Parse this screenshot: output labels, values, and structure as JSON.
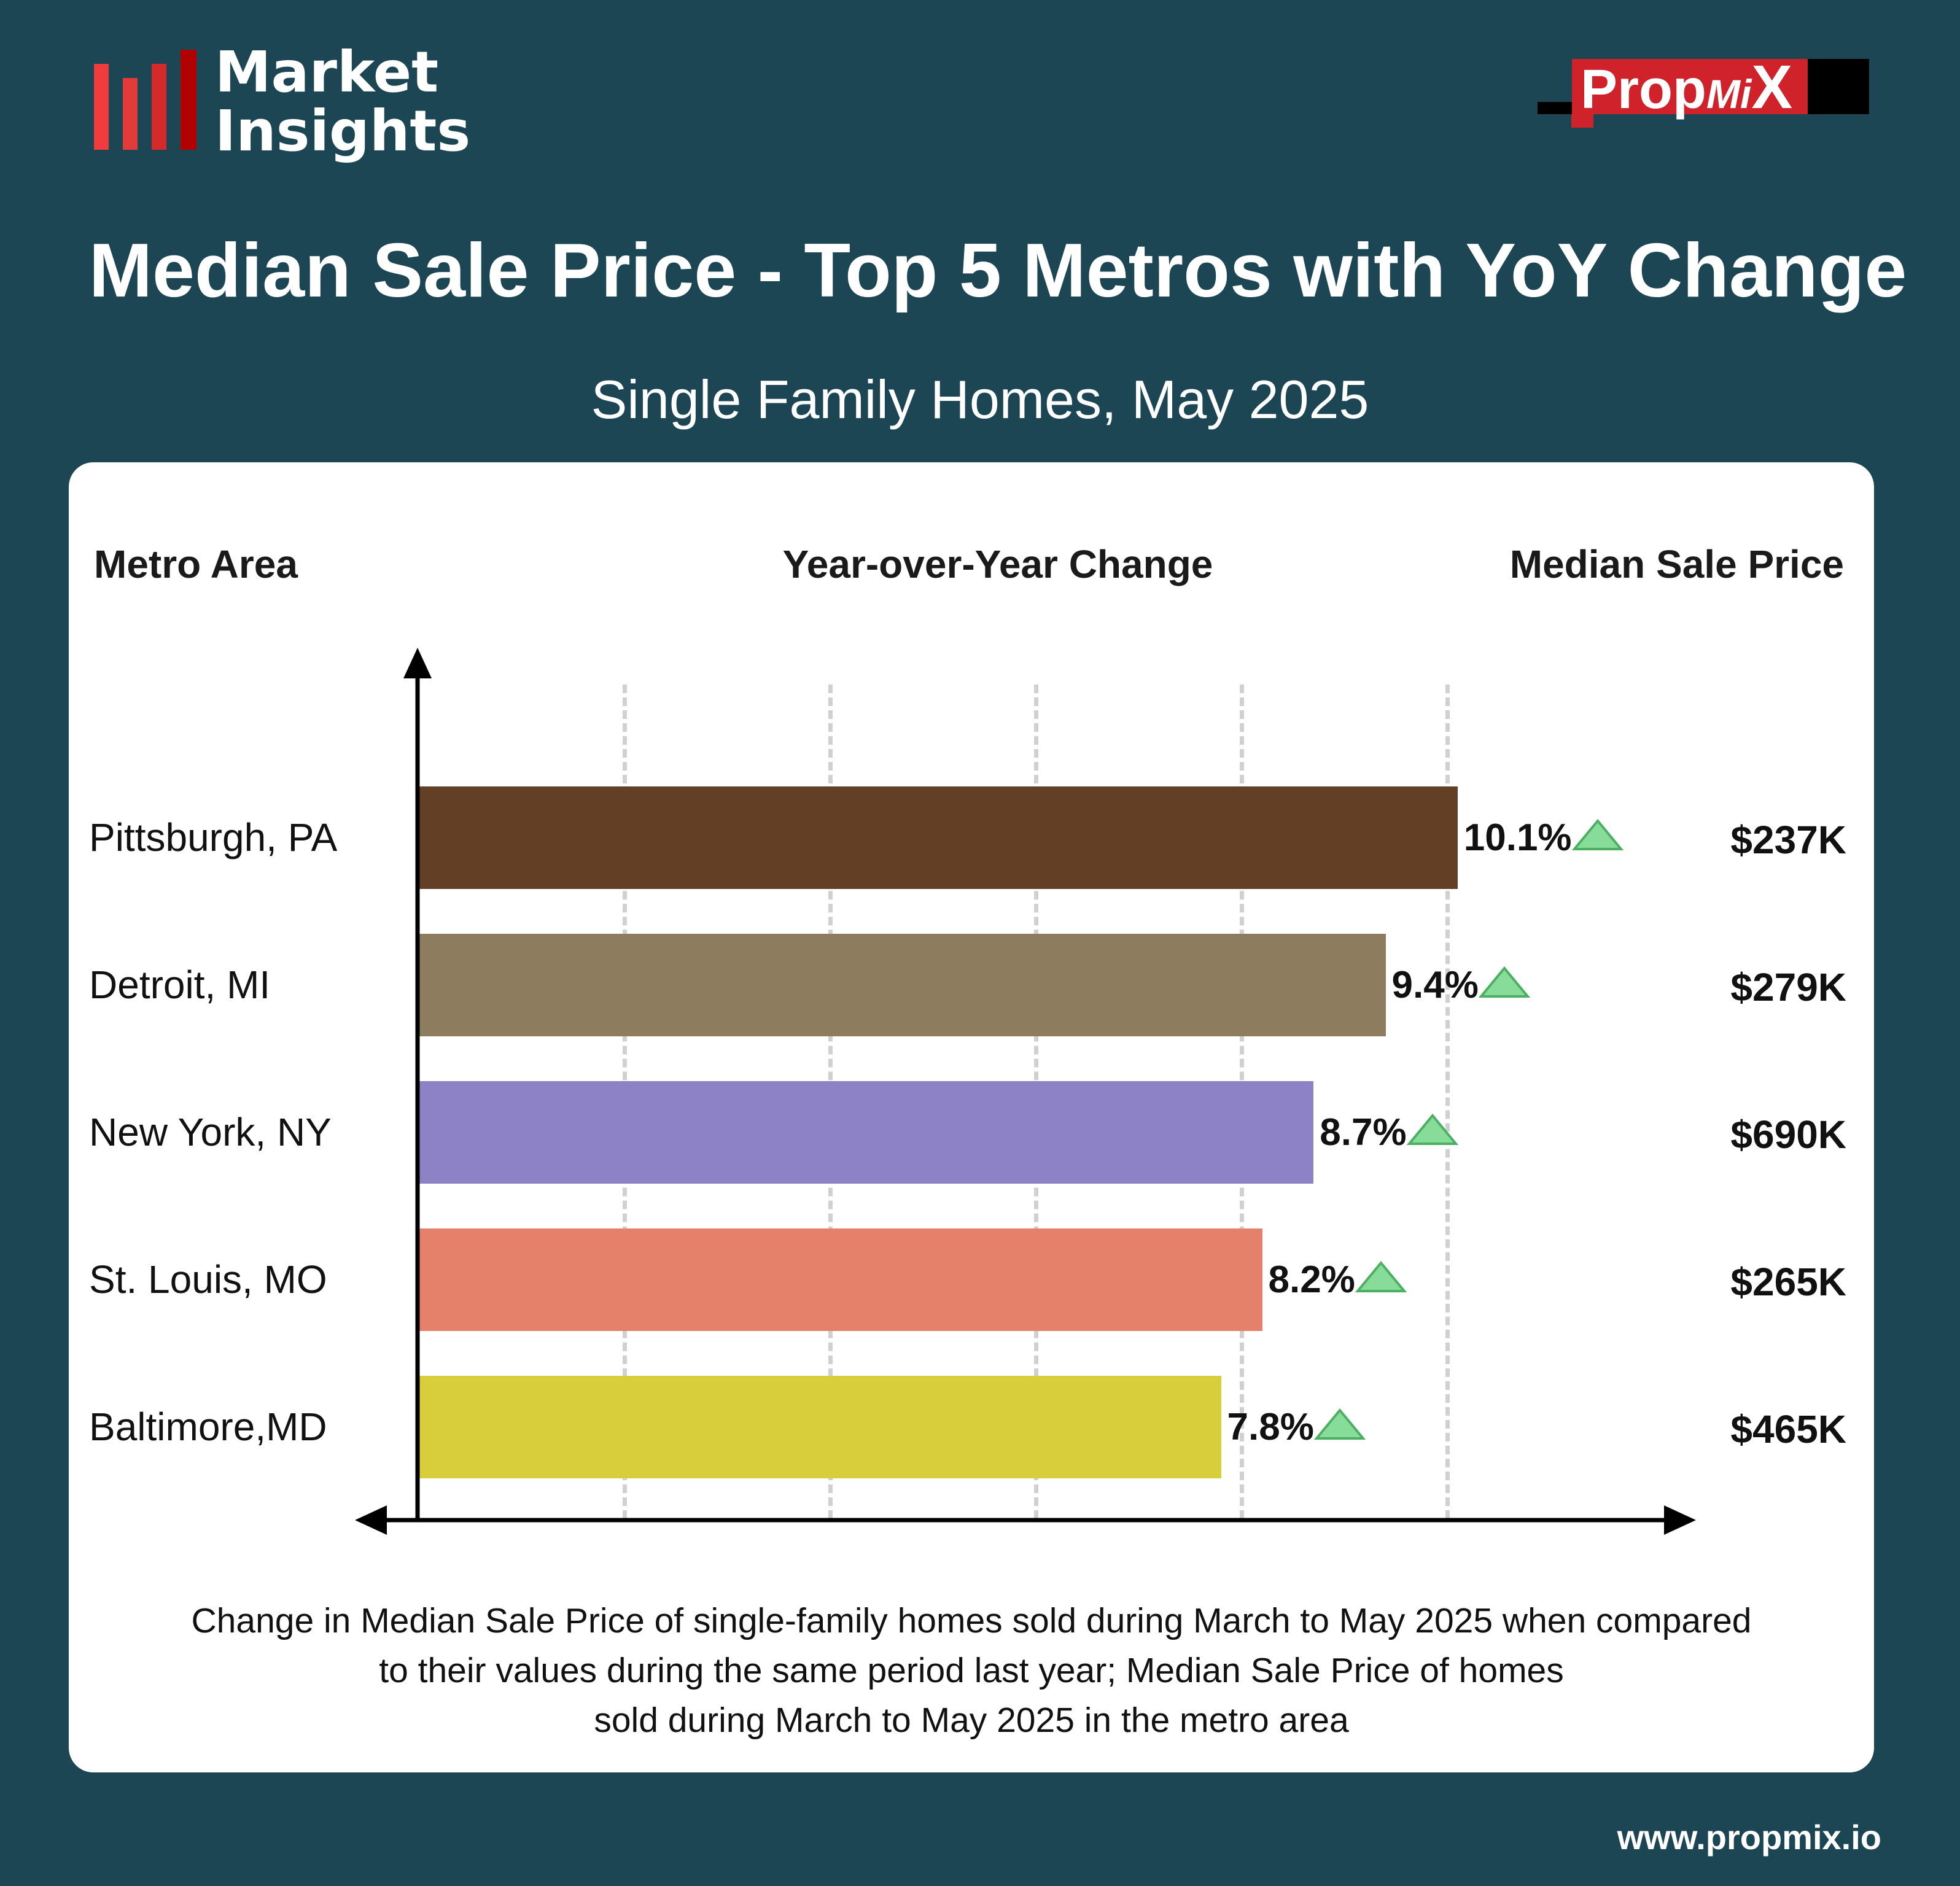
{
  "logo": {
    "line1": "Market",
    "line2": "Insights"
  },
  "brand": {
    "name_a": "Prop",
    "name_b": "Mi",
    "name_c": "X"
  },
  "title": "Median Sale Price - Top 5 Metros with YoY Change",
  "subtitle": "Single Family Homes, May 2025",
  "headers": {
    "metro": "Metro Area",
    "yoy": "Year-over-Year Change",
    "price": "Median Sale Price"
  },
  "chart_data": {
    "type": "bar",
    "orientation": "horizontal",
    "categories": [
      "Pittsburgh, PA",
      "Detroit, MI",
      "New York, NY",
      "St. Louis, MO",
      "Baltimore,MD"
    ],
    "values": [
      10.1,
      9.4,
      8.7,
      8.2,
      7.8
    ],
    "value_labels": [
      "10.1%",
      "9.4%",
      "8.7%",
      "8.2%",
      "7.8%"
    ],
    "prices": [
      "$237K",
      "$279K",
      "$690K",
      "$265K",
      "$465K"
    ],
    "colors": [
      "#633f26",
      "#8e7c5e",
      "#8c82c4",
      "#e5806a",
      "#d8ce3c"
    ],
    "trend": "up",
    "xlim": [
      0,
      10
    ],
    "gridlines": [
      2,
      4,
      6,
      8,
      10
    ],
    "xlabel": "Year-over-Year Change",
    "ylabel": "Metro Area"
  },
  "footer": {
    "line1": "Change in Median Sale Price of single-family homes sold during March to May 2025 when compared",
    "line2": "to their values during the same period last year; Median Sale Price of homes",
    "line3": "sold during March to May 2025 in the metro area"
  },
  "url": "www.propmix.io"
}
